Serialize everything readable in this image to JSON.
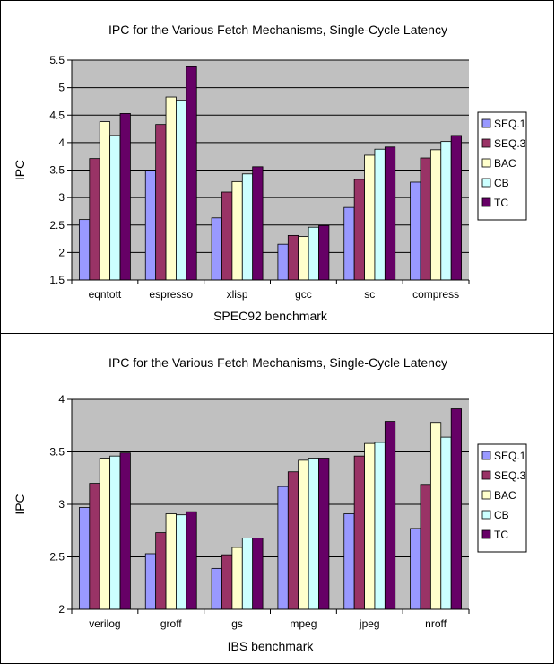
{
  "chart_data": [
    {
      "type": "bar",
      "title": "IPC for the Various Fetch Mechanisms, Single-Cycle Latency",
      "xlabel": "SPEC92 benchmark",
      "ylabel": "IPC",
      "ylim": [
        1.5,
        5.5
      ],
      "yticks": [
        "1.5",
        "2",
        "2.5",
        "3",
        "3.5",
        "4",
        "4.5",
        "5",
        "5.5"
      ],
      "categories": [
        "eqntott",
        "espresso",
        "xlisp",
        "gcc",
        "sc",
        "compress"
      ],
      "series": [
        {
          "name": "SEQ.1",
          "color": "#9999ff",
          "values": [
            2.6,
            3.49,
            2.63,
            2.15,
            2.82,
            3.28
          ]
        },
        {
          "name": "SEQ.3",
          "color": "#993366",
          "values": [
            3.71,
            4.33,
            3.1,
            2.31,
            3.33,
            3.72
          ]
        },
        {
          "name": "BAC",
          "color": "#ffffcc",
          "values": [
            4.38,
            4.83,
            3.29,
            2.29,
            3.77,
            3.87
          ]
        },
        {
          "name": "CB",
          "color": "#ccffff",
          "values": [
            4.13,
            4.77,
            3.43,
            2.46,
            3.88,
            4.02
          ]
        },
        {
          "name": "TC",
          "color": "#660066",
          "values": [
            4.53,
            5.38,
            3.56,
            2.49,
            3.92,
            4.13
          ]
        }
      ],
      "grid": true,
      "legend": "right"
    },
    {
      "type": "bar",
      "title": "IPC for the Various Fetch Mechanisms, Single-Cycle Latency",
      "xlabel": "IBS benchmark",
      "ylabel": "IPC",
      "ylim": [
        2,
        4
      ],
      "yticks": [
        "2",
        "2.5",
        "3",
        "3.5",
        "4"
      ],
      "categories": [
        "verilog",
        "groff",
        "gs",
        "mpeg",
        "jpeg",
        "nroff"
      ],
      "series": [
        {
          "name": "SEQ.1",
          "color": "#9999ff",
          "values": [
            2.97,
            2.53,
            2.39,
            3.17,
            2.91,
            2.77
          ]
        },
        {
          "name": "SEQ.3",
          "color": "#993366",
          "values": [
            3.2,
            2.73,
            2.52,
            3.31,
            3.46,
            3.19
          ]
        },
        {
          "name": "BAC",
          "color": "#ffffcc",
          "values": [
            3.44,
            2.91,
            2.59,
            3.42,
            3.58,
            3.78
          ]
        },
        {
          "name": "CB",
          "color": "#ccffff",
          "values": [
            3.46,
            2.9,
            2.68,
            3.44,
            3.59,
            3.64
          ]
        },
        {
          "name": "TC",
          "color": "#660066",
          "values": [
            3.49,
            2.93,
            2.68,
            3.44,
            3.79,
            3.91
          ]
        }
      ],
      "grid": true,
      "legend": "right"
    }
  ]
}
